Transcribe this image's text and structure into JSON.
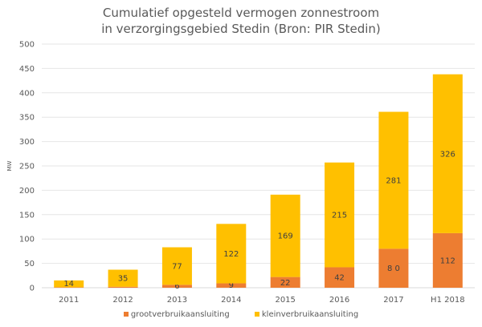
{
  "chart_data": {
    "type": "bar",
    "stacked": true,
    "title": [
      "Cumulatief opgesteld vermogen zonnestroom",
      "in verzorgingsgebied Stedin (Bron: PIR Stedin)"
    ],
    "xlabel": "",
    "ylabel": "MW",
    "ylim": [
      0,
      500
    ],
    "yticks": [
      0,
      50,
      100,
      150,
      200,
      250,
      300,
      350,
      400,
      450,
      500
    ],
    "grid": true,
    "legend_position": "bottom",
    "categories": [
      "2011",
      "2012",
      "2013",
      "2014",
      "2015",
      "2016",
      "2017",
      "H1 2018"
    ],
    "series": [
      {
        "name": "grootverbruikaansluiting",
        "color": "#ED7D31",
        "values": [
          1,
          2,
          6,
          9,
          22,
          42,
          80,
          112
        ],
        "labels": [
          "",
          "",
          "6",
          "9",
          "22",
          "42",
          "8 0",
          "112"
        ]
      },
      {
        "name": "kleinverbruikaansluiting",
        "color": "#FFC000",
        "values": [
          14,
          35,
          77,
          122,
          169,
          215,
          281,
          326
        ],
        "labels": [
          "14",
          "35",
          "77",
          "122",
          "169",
          "215",
          "281",
          "326"
        ]
      }
    ]
  }
}
